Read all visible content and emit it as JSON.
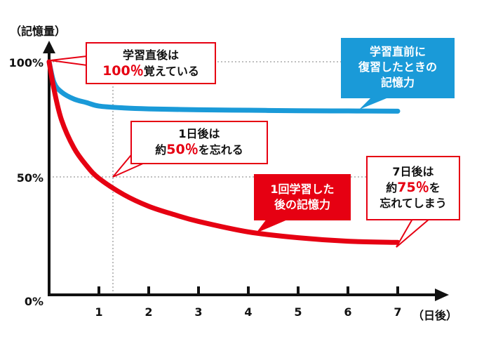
{
  "chart_data": {
    "type": "line",
    "ylabel": "（記憶量）",
    "xlabel": "（日後）",
    "ylim": [
      0,
      100
    ],
    "xlim": [
      0,
      7
    ],
    "x_ticks": [
      "1",
      "2",
      "3",
      "4",
      "5",
      "6",
      "7"
    ],
    "y_ticks": [
      "0%",
      "50%",
      "100%"
    ],
    "grid": "dotted at x=1 and y=50, 100",
    "series": [
      {
        "color": "#1a9ad8",
        "x": [
          0,
          0.1,
          0.25,
          0.5,
          0.75,
          1,
          1.5,
          2,
          3,
          4,
          5,
          6,
          7
        ],
        "y": [
          100,
          91,
          87,
          84,
          82.5,
          81,
          80.2,
          79.8,
          79.4,
          79.2,
          79,
          78.9,
          78.8
        ]
      },
      {
        "color": "#e60012",
        "x": [
          0,
          0.1,
          0.25,
          0.5,
          0.75,
          1,
          1.5,
          2,
          2.5,
          3,
          4,
          5,
          6,
          7
        ],
        "y": [
          100,
          88,
          75,
          63,
          55.5,
          50,
          43,
          38,
          34.5,
          31.5,
          27,
          24.5,
          23,
          22.5
        ]
      }
    ],
    "annotations": {
      "start": {
        "line1": "学習直後は",
        "pre": "",
        "hl": "100％",
        "post": "覚えている"
      },
      "day1": {
        "line1": "1日後は",
        "pre": "約",
        "hl": "50％",
        "post": "を忘れる"
      },
      "day7": {
        "line1": "7日後は",
        "pre": "約",
        "hl": "75％",
        "post": "を",
        "line3": "忘れてしまう"
      },
      "red_label": {
        "line1": "1回学習した",
        "line2": "後の記憶力"
      },
      "blue_label": {
        "line1": "学習直前に",
        "line2": "復習したときの",
        "line3": "記憶力"
      }
    }
  },
  "colors": {
    "red": "#e60012",
    "blue": "#1a9ad8",
    "axis": "#111111",
    "grid": "#999999"
  }
}
